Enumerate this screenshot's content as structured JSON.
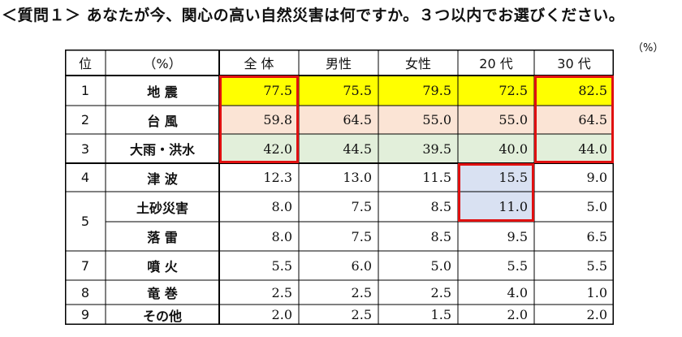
{
  "title": "＜質問１＞ あなたが今、関心の高い自然災害は何ですか。３つ以内でお選びください。",
  "unit": "（%）",
  "header": [
    "位",
    "（%）",
    "全 体",
    "男性",
    "女性",
    "20 代",
    "30 代"
  ],
  "rows": [
    {
      "rank": "1",
      "item": "地 震",
      "values": [
        "77.5",
        "75.5",
        "79.5",
        "72.5",
        "82.5"
      ]
    },
    {
      "rank": "2",
      "item": "台 風",
      "values": [
        "59.8",
        "64.5",
        "55.0",
        "55.0",
        "64.5"
      ]
    },
    {
      "rank": "3",
      "item": "大雨・洪水",
      "values": [
        "42.0",
        "44.5",
        "39.5",
        "40.0",
        "44.0"
      ]
    },
    {
      "rank": "4",
      "item": "津 波",
      "values": [
        "12.3",
        "13.0",
        "11.5",
        "15.5",
        "9.0"
      ]
    },
    {
      "rank": "5",
      "item": "土砂災害",
      "values": [
        "8.0",
        "7.5",
        "8.5",
        "11.0",
        "5.0"
      ]
    },
    {
      "rank": "",
      "item": "落 雷",
      "values": [
        "8.0",
        "7.5",
        "8.5",
        "9.5",
        "6.5"
      ]
    },
    {
      "rank": "7",
      "item": "噴 火",
      "values": [
        "5.5",
        "6.0",
        "5.0",
        "5.5",
        "5.5"
      ]
    },
    {
      "rank": "8",
      "item": "竜 巻",
      "values": [
        "2.5",
        "2.5",
        "2.5",
        "4.0",
        "1.0"
      ]
    },
    {
      "rank": "9",
      "item": "その他",
      "values": [
        "2.0",
        "2.5",
        "1.5",
        "2.0",
        "2.0"
      ]
    }
  ],
  "colors": {
    "row1": "#ffff00",
    "row2": "#fbe4d5",
    "row3": "#e2efda",
    "highlight_blue": "#d9e1f2",
    "frame_red": "#e01010"
  }
}
